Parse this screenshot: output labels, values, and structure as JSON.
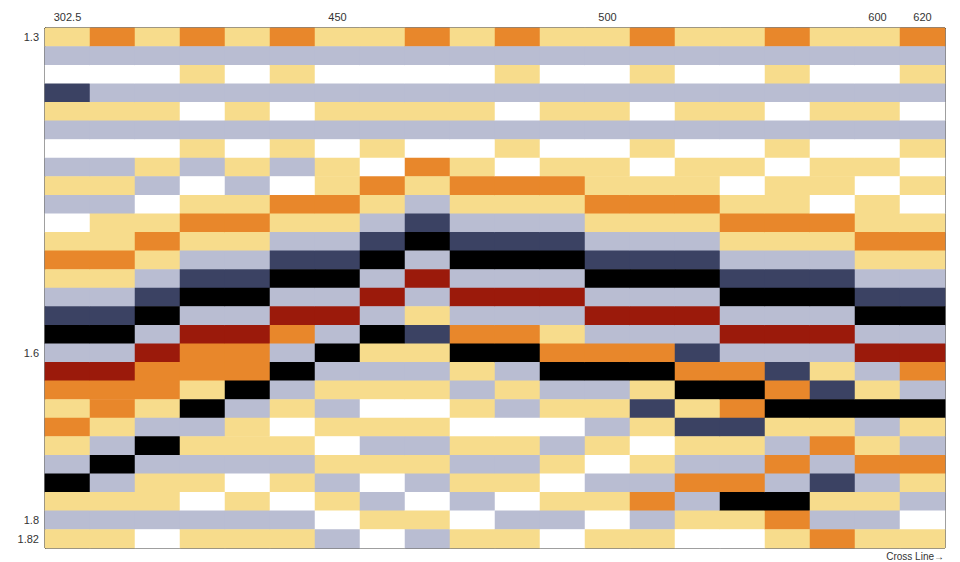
{
  "chart_data": {
    "type": "heatmap",
    "x_label": "Cross Line→",
    "x": [
      "302.5",
      null,
      null,
      null,
      null,
      null,
      "450",
      null,
      null,
      null,
      null,
      null,
      "500",
      null,
      null,
      null,
      null,
      null,
      "600",
      "620"
    ],
    "y": [
      "1.3",
      null,
      null,
      null,
      null,
      null,
      null,
      null,
      null,
      null,
      null,
      null,
      null,
      null,
      null,
      null,
      null,
      "1.6",
      null,
      null,
      null,
      null,
      null,
      null,
      null,
      null,
      "1.8",
      "1.82"
    ],
    "value_range": [
      -3,
      3
    ],
    "tick_labels": true,
    "grid": false,
    "values": [
      [
        1,
        -1,
        0,
        -2,
        1,
        -1,
        0,
        -1,
        1,
        -1,
        0,
        1,
        2,
        1,
        -1,
        -2,
        -3,
        -1,
        3,
        2,
        1,
        2,
        1,
        -1,
        -3,
        1,
        -1,
        1
      ],
      [
        2,
        -1,
        0,
        -1,
        1,
        -1,
        0,
        -1,
        1,
        -1,
        1,
        1,
        2,
        1,
        -1,
        -2,
        -3,
        -1,
        3,
        2,
        2,
        1,
        -1,
        -3,
        -1,
        1,
        -1,
        1
      ],
      [
        1,
        -1,
        0,
        -1,
        1,
        -1,
        0,
        1,
        -1,
        0,
        1,
        2,
        1,
        -1,
        -2,
        -3,
        -1,
        3,
        2,
        2,
        1,
        -1,
        -3,
        -1,
        1,
        1,
        -1,
        0
      ],
      [
        2,
        -1,
        1,
        -1,
        0,
        -1,
        1,
        -1,
        0,
        1,
        2,
        1,
        -1,
        -2,
        -3,
        -1,
        3,
        2,
        2,
        1,
        -3,
        -1,
        1,
        -1,
        1,
        0,
        -1,
        1
      ],
      [
        1,
        -1,
        0,
        -1,
        1,
        -1,
        0,
        1,
        -1,
        1,
        2,
        1,
        -1,
        -2,
        -3,
        -1,
        3,
        2,
        2,
        -3,
        -1,
        1,
        1,
        -1,
        0,
        1,
        -1,
        1
      ],
      [
        2,
        -1,
        1,
        -1,
        0,
        -1,
        1,
        -1,
        0,
        2,
        1,
        -1,
        -2,
        -3,
        -1,
        3,
        2,
        -1,
        -3,
        -1,
        1,
        0,
        1,
        -1,
        1,
        0,
        -1,
        1
      ],
      [
        1,
        -1,
        0,
        -1,
        1,
        -1,
        0,
        1,
        1,
        2,
        1,
        -1,
        -2,
        -3,
        -1,
        3,
        -1,
        -3,
        -1,
        1,
        -1,
        1,
        0,
        1,
        -1,
        1,
        0,
        -1
      ],
      [
        1,
        -1,
        0,
        -1,
        1,
        -1,
        1,
        0,
        2,
        1,
        -1,
        -2,
        -3,
        -1,
        3,
        -1,
        -3,
        1,
        -1,
        1,
        0,
        1,
        -1,
        1,
        0,
        -1,
        1,
        0
      ],
      [
        2,
        -1,
        0,
        -1,
        1,
        -1,
        0,
        2,
        1,
        -1,
        -2,
        -3,
        -1,
        3,
        -1,
        1,
        -2,
        1,
        -1,
        1,
        0,
        1,
        -1,
        1,
        -1,
        0,
        1,
        -1
      ],
      [
        1,
        -1,
        0,
        -1,
        1,
        -1,
        0,
        1,
        2,
        1,
        -1,
        -2,
        -3,
        -1,
        3,
        -1,
        2,
        -3,
        1,
        -1,
        1,
        0,
        1,
        -1,
        1,
        -1,
        0,
        1
      ],
      [
        2,
        -1,
        1,
        -1,
        0,
        -1,
        1,
        0,
        2,
        1,
        -1,
        -2,
        -3,
        -1,
        3,
        -1,
        2,
        -3,
        -1,
        1,
        -1,
        0,
        1,
        -1,
        1,
        0,
        -1,
        1
      ],
      [
        1,
        -1,
        0,
        -1,
        1,
        -1,
        0,
        1,
        2,
        1,
        -1,
        -2,
        -3,
        -1,
        3,
        -1,
        1,
        2,
        -3,
        -1,
        1,
        0,
        -1,
        1,
        0,
        1,
        -1,
        0
      ],
      [
        1,
        -1,
        0,
        -1,
        1,
        -1,
        0,
        1,
        1,
        2,
        1,
        -1,
        -2,
        -3,
        -1,
        3,
        -1,
        2,
        -3,
        -1,
        1,
        -1,
        1,
        0,
        -1,
        1,
        0,
        1
      ],
      [
        2,
        -1,
        1,
        -1,
        0,
        -1,
        1,
        0,
        1,
        2,
        1,
        -1,
        -2,
        -3,
        -1,
        3,
        -1,
        2,
        -3,
        1,
        -2,
        1,
        0,
        1,
        -1,
        2,
        -1,
        1
      ],
      [
        1,
        -1,
        0,
        -1,
        1,
        -1,
        0,
        1,
        1,
        2,
        1,
        -1,
        -2,
        -3,
        -1,
        3,
        -1,
        -2,
        2,
        -3,
        1,
        -2,
        1,
        -1,
        2,
        -1,
        1,
        0
      ],
      [
        1,
        -1,
        0,
        -1,
        1,
        -1,
        0,
        1,
        0,
        1,
        2,
        1,
        -1,
        -2,
        -3,
        -1,
        3,
        -1,
        2,
        -3,
        2,
        -2,
        1,
        -1,
        2,
        -3,
        1,
        0
      ],
      [
        2,
        -1,
        1,
        -1,
        0,
        -1,
        1,
        0,
        1,
        1,
        2,
        1,
        -1,
        -2,
        -3,
        -1,
        3,
        -1,
        -2,
        2,
        -3,
        1,
        -1,
        2,
        -1,
        -3,
        2,
        1
      ],
      [
        1,
        -1,
        0,
        -1,
        1,
        -1,
        0,
        1,
        1,
        0,
        2,
        1,
        -1,
        -2,
        -3,
        -1,
        3,
        -1,
        1,
        -2,
        -3,
        1,
        2,
        -1,
        -2,
        1,
        -1,
        2
      ],
      [
        1,
        -1,
        0,
        -1,
        1,
        -1,
        0,
        1,
        0,
        1,
        1,
        2,
        1,
        -1,
        -2,
        -3,
        -1,
        3,
        -1,
        1,
        -3,
        -1,
        1,
        2,
        -1,
        1,
        -1,
        1
      ],
      [
        2,
        -1,
        1,
        -1,
        0,
        -1,
        1,
        0,
        1,
        0,
        1,
        2,
        1,
        -1,
        -2,
        -3,
        -1,
        3,
        2,
        -1,
        -3,
        1,
        -1,
        2,
        1,
        -1,
        0,
        1
      ]
    ]
  }
}
